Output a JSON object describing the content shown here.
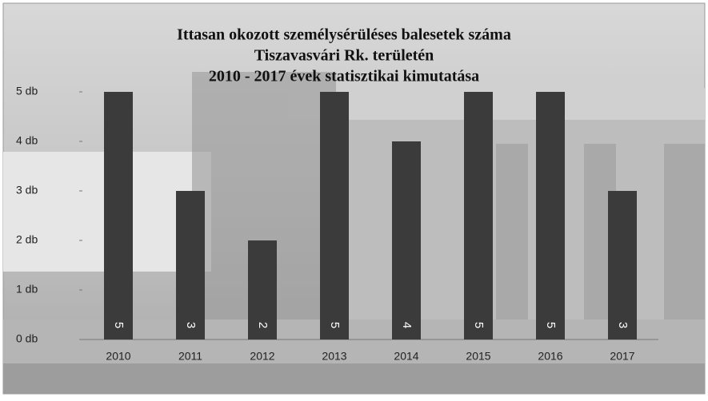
{
  "chart_data": {
    "type": "bar",
    "title_lines": [
      "Ittasan okozott  személysérüléses balesetek száma",
      "Tiszavasvári Rk. területén",
      "2010 - 2017 évek statisztikai kimutatása"
    ],
    "categories": [
      "2010",
      "2011",
      "2012",
      "2013",
      "2014",
      "2015",
      "2016",
      "2017"
    ],
    "values": [
      5,
      3,
      2,
      5,
      4,
      5,
      5,
      3
    ],
    "color": "#3b3b3b",
    "ylim": [
      0,
      5
    ],
    "yticks": [
      {
        "value": 0,
        "label": "0 db"
      },
      {
        "value": 1,
        "label": "1 db"
      },
      {
        "value": 2,
        "label": "2 db"
      },
      {
        "value": 3,
        "label": "3 db"
      },
      {
        "value": 4,
        "label": "4 db"
      },
      {
        "value": 5,
        "label": "5 db"
      }
    ],
    "data_labels": true
  }
}
